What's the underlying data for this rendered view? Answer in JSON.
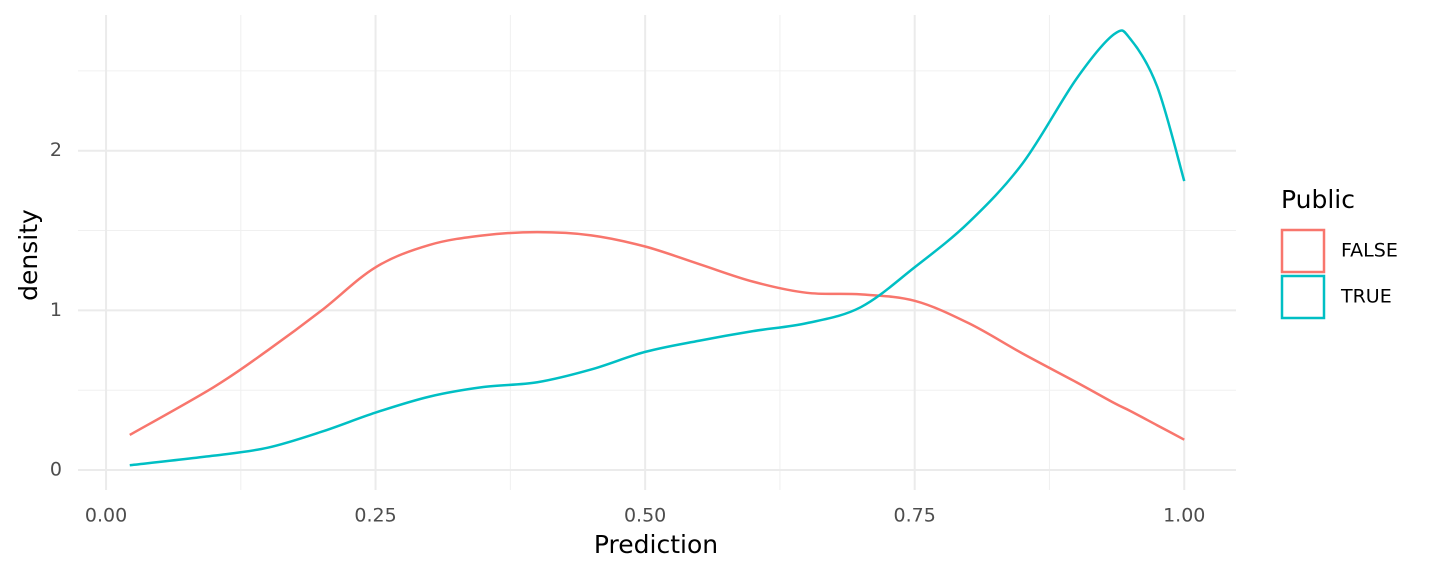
{
  "chart_data": {
    "type": "line",
    "x_label": "Prediction",
    "y_label": "density",
    "legend_title": "Public",
    "legend": "right",
    "grid": true,
    "x": [
      0.022,
      0.1,
      0.15,
      0.2,
      0.25,
      0.3,
      0.35,
      0.4,
      0.45,
      0.5,
      0.55,
      0.6,
      0.65,
      0.7,
      0.75,
      0.8,
      0.85,
      0.9,
      0.935,
      0.95,
      0.975,
      1.0
    ],
    "series": [
      {
        "name": "FALSE",
        "color": "#F8766D",
        "values": [
          0.22,
          0.52,
          0.75,
          1.0,
          1.27,
          1.41,
          1.47,
          1.49,
          1.47,
          1.4,
          1.29,
          1.18,
          1.11,
          1.1,
          1.06,
          0.92,
          0.73,
          0.55,
          0.42,
          0.37,
          0.28,
          0.19
        ]
      },
      {
        "name": "TRUE",
        "color": "#00BFC4",
        "values": [
          0.03,
          0.09,
          0.14,
          0.24,
          0.36,
          0.46,
          0.52,
          0.55,
          0.63,
          0.74,
          0.81,
          0.87,
          0.92,
          1.02,
          1.27,
          1.55,
          1.92,
          2.45,
          2.73,
          2.7,
          2.4,
          1.81
        ]
      }
    ],
    "xlim": [
      -0.026,
      1.048
    ],
    "ylim": [
      -0.125,
      2.85
    ],
    "xticks": [
      {
        "value": 0,
        "label": "0.00"
      },
      {
        "value": 0.25,
        "label": "0.25"
      },
      {
        "value": 0.5,
        "label": "0.50"
      },
      {
        "value": 0.75,
        "label": "0.75"
      },
      {
        "value": 1,
        "label": "1.00"
      }
    ],
    "yticks": [
      0,
      1,
      2
    ],
    "x_minor_grid": [
      0.125,
      0.375,
      0.625,
      0.875
    ],
    "y_minor_grid": [
      0.5,
      1.5,
      2.5
    ]
  }
}
